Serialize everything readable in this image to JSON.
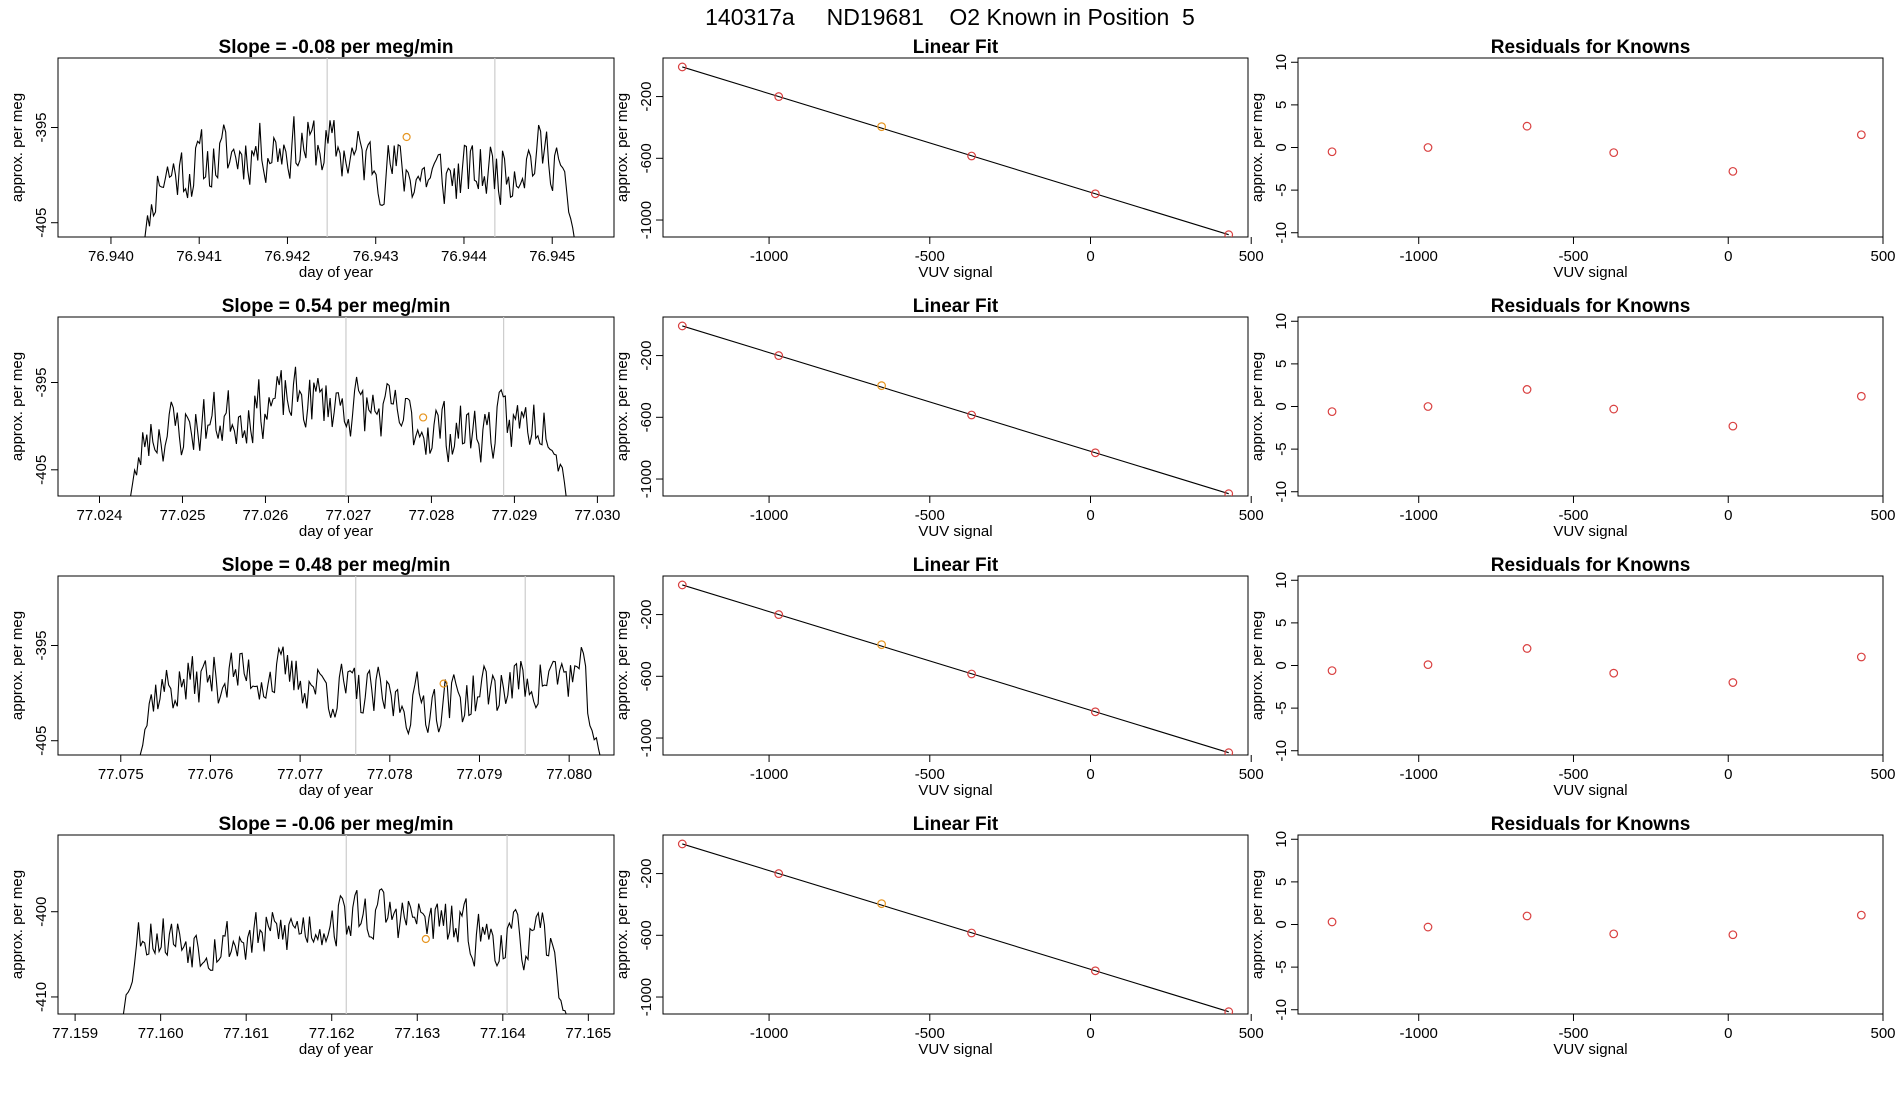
{
  "figure": {
    "suptitle": "140317a     ND19681    O2 Known in Position  5",
    "colors": {
      "trace": "#000000",
      "frame": "#000000",
      "marker_red": "#d94040",
      "marker_orange": "#e69520",
      "vline": "#cccccc",
      "fit_line": "#000000"
    }
  },
  "chart_data": [
    {
      "type": "line",
      "panel": "timeseries",
      "row": 0,
      "title": "Slope =  -0.08  per meg/min",
      "xlabel": "day of year",
      "ylabel": "approx. per meg",
      "xlim": [
        76.9394,
        76.9457
      ],
      "ylim": [
        -406.5,
        -387.7
      ],
      "x_ticks": [
        76.94,
        76.941,
        76.942,
        76.943,
        76.944,
        76.945
      ],
      "x_tick_labels": [
        "76.940",
        "76.941",
        "76.942",
        "76.943",
        "76.944",
        "76.945"
      ],
      "y_ticks": [
        -395,
        -405
      ],
      "y_tick_labels": [
        "-395",
        "-405"
      ],
      "x_start": 76.9403,
      "x_end": 76.9453,
      "center": -398.5,
      "amplitude": 4.8,
      "seed": 11,
      "vlines": [
        76.94245,
        76.94435
      ],
      "marker": {
        "x": 76.94335,
        "y": -396.0,
        "color": "orange"
      }
    },
    {
      "type": "scatter",
      "panel": "fit",
      "row": 0,
      "title": "Linear Fit",
      "xlabel": "VUV signal",
      "ylabel": "approx. per meg",
      "xlim": [
        -1330,
        490
      ],
      "ylim": [
        -1110,
        50
      ],
      "x_ticks": [
        -1000,
        -500,
        0,
        500
      ],
      "x_tick_labels": [
        "-1000",
        "-500",
        "0",
        "500"
      ],
      "y_ticks": [
        -200,
        -600,
        -1000
      ],
      "y_tick_labels": [
        "-200",
        "-600",
        "-1000"
      ],
      "x": [
        -1270,
        -970,
        -650,
        -370,
        15,
        430
      ],
      "y": [
        -8,
        -200,
        -395,
        -585,
        -830,
        -1095
      ],
      "highlight_index": 2,
      "fit_line": {
        "x": [
          -1270,
          430
        ],
        "y": [
          -8,
          -1095
        ]
      }
    },
    {
      "type": "scatter",
      "panel": "residuals",
      "row": 0,
      "title": "Residuals for Knowns",
      "xlabel": "VUV signal",
      "ylabel": "approx. per meg",
      "xlim": [
        -1390,
        500
      ],
      "ylim": [
        -10.5,
        10.5
      ],
      "x_ticks": [
        -1000,
        -500,
        0,
        500
      ],
      "x_tick_labels": [
        "-1000",
        "-500",
        "0",
        "500"
      ],
      "y_ticks": [
        10,
        5,
        0,
        -5,
        -10
      ],
      "y_tick_labels": [
        "10",
        "5",
        "0",
        "-5",
        "-10"
      ],
      "x": [
        -1280,
        -970,
        -650,
        -370,
        15,
        430
      ],
      "y": [
        -0.5,
        0.0,
        2.5,
        -0.6,
        -2.8,
        1.5
      ]
    },
    {
      "type": "line",
      "panel": "timeseries",
      "row": 1,
      "title": "Slope =  0.54  per meg/min",
      "xlabel": "day of year",
      "ylabel": "approx. per meg",
      "xlim": [
        77.0235,
        77.0302
      ],
      "ylim": [
        -408.0,
        -387.5
      ],
      "x_ticks": [
        77.024,
        77.025,
        77.026,
        77.027,
        77.028,
        77.029,
        77.03
      ],
      "x_tick_labels": [
        "77.024",
        "77.025",
        "77.026",
        "77.027",
        "77.028",
        "77.029",
        "77.030"
      ],
      "y_ticks": [
        -395,
        -405
      ],
      "y_tick_labels": [
        "-395",
        "-405"
      ],
      "x_start": 77.0243,
      "x_end": 77.0297,
      "center": -398.8,
      "amplitude": 5.0,
      "seed": 23,
      "vlines": [
        77.02697,
        77.02887
      ],
      "marker": {
        "x": 77.0279,
        "y": -399.0,
        "color": "orange"
      }
    },
    {
      "type": "scatter",
      "panel": "fit",
      "row": 1,
      "title": "Linear Fit",
      "xlabel": "VUV signal",
      "ylabel": "approx. per meg",
      "xlim": [
        -1330,
        490
      ],
      "ylim": [
        -1110,
        50
      ],
      "x_ticks": [
        -1000,
        -500,
        0,
        500
      ],
      "x_tick_labels": [
        "-1000",
        "-500",
        "0",
        "500"
      ],
      "y_ticks": [
        -200,
        -600,
        -1000
      ],
      "y_tick_labels": [
        "-200",
        "-600",
        "-1000"
      ],
      "x": [
        -1270,
        -970,
        -650,
        -370,
        15,
        430
      ],
      "y": [
        -8,
        -200,
        -395,
        -585,
        -830,
        -1095
      ],
      "highlight_index": 2,
      "fit_line": {
        "x": [
          -1270,
          430
        ],
        "y": [
          -8,
          -1095
        ]
      }
    },
    {
      "type": "scatter",
      "panel": "residuals",
      "row": 1,
      "title": "Residuals for Knowns",
      "xlabel": "VUV signal",
      "ylabel": "approx. per meg",
      "xlim": [
        -1390,
        500
      ],
      "ylim": [
        -10.5,
        10.5
      ],
      "x_ticks": [
        -1000,
        -500,
        0,
        500
      ],
      "x_tick_labels": [
        "-1000",
        "-500",
        "0",
        "500"
      ],
      "y_ticks": [
        10,
        5,
        0,
        -5,
        -10
      ],
      "y_tick_labels": [
        "10",
        "5",
        "0",
        "-5",
        "-10"
      ],
      "x": [
        -1280,
        -970,
        -650,
        -370,
        15,
        430
      ],
      "y": [
        -0.6,
        0.0,
        2.0,
        -0.3,
        -2.3,
        1.2
      ]
    },
    {
      "type": "line",
      "panel": "timeseries",
      "row": 2,
      "title": "Slope =  0.48  per meg/min",
      "xlabel": "day of year",
      "ylabel": "approx. per meg",
      "xlim": [
        77.0743,
        77.0805
      ],
      "ylim": [
        -406.5,
        -387.7
      ],
      "x_ticks": [
        77.075,
        77.076,
        77.077,
        77.078,
        77.079,
        77.08
      ],
      "x_tick_labels": [
        "77.075",
        "77.076",
        "77.077",
        "77.078",
        "77.079",
        "77.080"
      ],
      "y_ticks": [
        -395,
        -405
      ],
      "y_tick_labels": [
        "-395",
        "-405"
      ],
      "x_start": 77.0751,
      "x_end": 77.0804,
      "center": -399.5,
      "amplitude": 4.2,
      "seed": 37,
      "vlines": [
        77.07762,
        77.07951
      ],
      "marker": {
        "x": 77.0786,
        "y": -399.0,
        "color": "orange"
      }
    },
    {
      "type": "scatter",
      "panel": "fit",
      "row": 2,
      "title": "Linear Fit",
      "xlabel": "VUV signal",
      "ylabel": "approx. per meg",
      "xlim": [
        -1330,
        490
      ],
      "ylim": [
        -1110,
        50
      ],
      "x_ticks": [
        -1000,
        -500,
        0,
        500
      ],
      "x_tick_labels": [
        "-1000",
        "-500",
        "0",
        "500"
      ],
      "y_ticks": [
        -200,
        -600,
        -1000
      ],
      "y_tick_labels": [
        "-200",
        "-600",
        "-1000"
      ],
      "x": [
        -1270,
        -970,
        -650,
        -370,
        15,
        430
      ],
      "y": [
        -8,
        -200,
        -395,
        -585,
        -830,
        -1095
      ],
      "highlight_index": 2,
      "fit_line": {
        "x": [
          -1270,
          430
        ],
        "y": [
          -8,
          -1095
        ]
      }
    },
    {
      "type": "scatter",
      "panel": "residuals",
      "row": 2,
      "title": "Residuals for Knowns",
      "xlabel": "VUV signal",
      "ylabel": "approx. per meg",
      "xlim": [
        -1390,
        500
      ],
      "ylim": [
        -10.5,
        10.5
      ],
      "x_ticks": [
        -1000,
        -500,
        0,
        500
      ],
      "x_tick_labels": [
        "-1000",
        "-500",
        "0",
        "500"
      ],
      "y_ticks": [
        10,
        5,
        0,
        -5,
        -10
      ],
      "y_tick_labels": [
        "10",
        "5",
        "0",
        "-5",
        "-10"
      ],
      "x": [
        -1280,
        -970,
        -650,
        -370,
        15,
        430
      ],
      "y": [
        -0.6,
        0.1,
        2.0,
        -0.9,
        -2.0,
        1.0
      ]
    },
    {
      "type": "line",
      "panel": "timeseries",
      "row": 3,
      "title": "Slope =  -0.06  per meg/min",
      "xlabel": "day of year",
      "ylabel": "approx. per meg",
      "xlim": [
        77.1588,
        77.1653
      ],
      "ylim": [
        -412.0,
        -391.0
      ],
      "x_ticks": [
        77.159,
        77.16,
        77.161,
        77.162,
        77.163,
        77.164,
        77.165
      ],
      "x_tick_labels": [
        "77.159",
        "77.160",
        "77.161",
        "77.162",
        "77.163",
        "77.164",
        "77.165"
      ],
      "y_ticks": [
        -400,
        -410
      ],
      "y_tick_labels": [
        "-400",
        "-410"
      ],
      "x_start": 77.1595,
      "x_end": 77.1648,
      "center": -402.0,
      "amplitude": 4.5,
      "seed": 53,
      "vlines": [
        77.16217,
        77.16405
      ],
      "marker": {
        "x": 77.1631,
        "y": -403.2,
        "color": "orange"
      }
    },
    {
      "type": "scatter",
      "panel": "fit",
      "row": 3,
      "title": "Linear Fit",
      "xlabel": "VUV signal",
      "ylabel": "approx. per meg",
      "xlim": [
        -1330,
        490
      ],
      "ylim": [
        -1110,
        50
      ],
      "x_ticks": [
        -1000,
        -500,
        0,
        500
      ],
      "x_tick_labels": [
        "-1000",
        "-500",
        "0",
        "500"
      ],
      "y_ticks": [
        -200,
        -600,
        -1000
      ],
      "y_tick_labels": [
        "-200",
        "-600",
        "-1000"
      ],
      "x": [
        -1270,
        -970,
        -650,
        -370,
        15,
        430
      ],
      "y": [
        -8,
        -200,
        -395,
        -585,
        -830,
        -1095
      ],
      "highlight_index": 2,
      "fit_line": {
        "x": [
          -1270,
          430
        ],
        "y": [
          -8,
          -1095
        ]
      }
    },
    {
      "type": "scatter",
      "panel": "residuals",
      "row": 3,
      "title": "Residuals for Knowns",
      "xlabel": "VUV signal",
      "ylabel": "approx. per meg",
      "xlim": [
        -1390,
        500
      ],
      "ylim": [
        -10.5,
        10.5
      ],
      "x_ticks": [
        -1000,
        -500,
        0,
        500
      ],
      "x_tick_labels": [
        "-1000",
        "-500",
        "0",
        "500"
      ],
      "y_ticks": [
        10,
        5,
        0,
        -5,
        -10
      ],
      "y_tick_labels": [
        "10",
        "5",
        "0",
        "-5",
        "-10"
      ],
      "x": [
        -1280,
        -970,
        -650,
        -370,
        15,
        430
      ],
      "y": [
        0.3,
        -0.3,
        1.0,
        -1.1,
        -1.2,
        1.1
      ]
    }
  ]
}
